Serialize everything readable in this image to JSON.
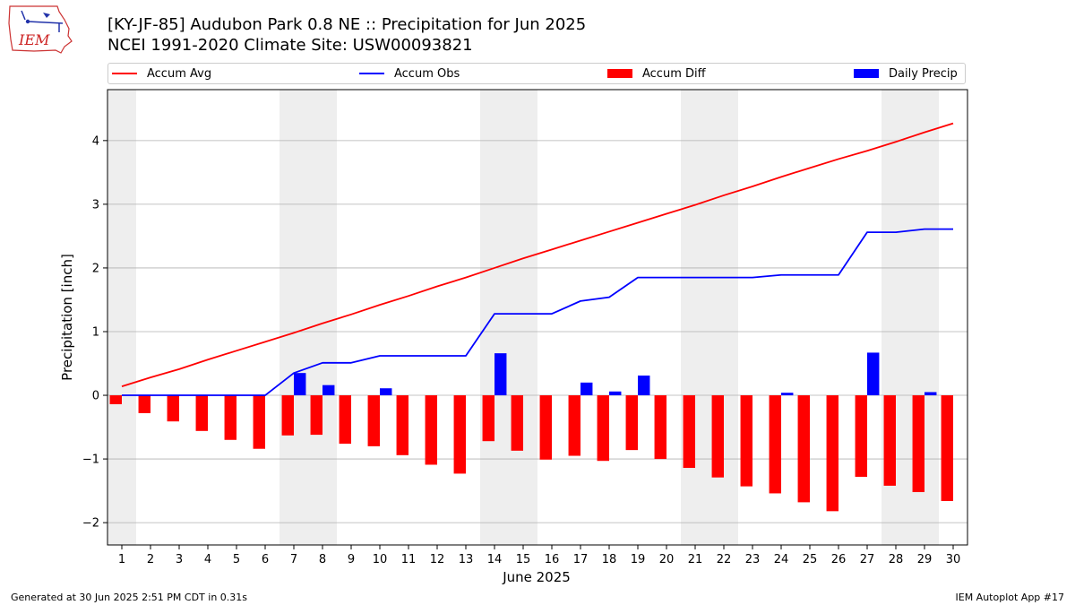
{
  "header": {
    "title_line1": "[KY-JF-85] Audubon Park 0.8 NE :: Precipitation for Jun 2025",
    "title_line2": "NCEI 1991-2020 Climate Site: USW00093821",
    "logo_text": "IEM"
  },
  "footer": {
    "generated": "Generated at 30 Jun 2025 2:51 PM CDT in 0.31s",
    "app": "IEM Autoplot App #17"
  },
  "colors": {
    "accum_avg": "#ff0000",
    "accum_obs": "#0000ff",
    "accum_diff": "#ff0000",
    "daily_precip": "#0000ff",
    "weekend_band": "#eeeeee",
    "grid": "#b0b0b0"
  },
  "chart_data": {
    "type": "bar",
    "xlabel": "June 2025",
    "ylabel": "Precipitation [inch]",
    "ylim": [
      -2.35,
      4.8
    ],
    "yticks": [
      -2,
      -1,
      0,
      1,
      2,
      3,
      4
    ],
    "ytick_labels": [
      "−2",
      "−1",
      "0",
      "1",
      "2",
      "3",
      "4"
    ],
    "grid": "horizontal",
    "legend_position": "top",
    "days": [
      1,
      2,
      3,
      4,
      5,
      6,
      7,
      8,
      9,
      10,
      11,
      12,
      13,
      14,
      15,
      16,
      17,
      18,
      19,
      20,
      21,
      22,
      23,
      24,
      25,
      26,
      27,
      28,
      29,
      30
    ],
    "weekend_days": [
      1,
      7,
      8,
      14,
      15,
      21,
      22,
      28,
      29
    ],
    "series": [
      {
        "name": "Accum Avg",
        "kind": "line",
        "values": [
          0.14,
          0.28,
          0.41,
          0.56,
          0.7,
          0.84,
          0.98,
          1.13,
          1.27,
          1.42,
          1.56,
          1.71,
          1.85,
          2.0,
          2.15,
          2.29,
          2.43,
          2.57,
          2.71,
          2.85,
          2.99,
          3.14,
          3.28,
          3.43,
          3.57,
          3.71,
          3.84,
          3.98,
          4.13,
          4.27
        ]
      },
      {
        "name": "Accum Obs",
        "kind": "line",
        "values": [
          0,
          0,
          0,
          0,
          0,
          0,
          0.35,
          0.51,
          0.51,
          0.62,
          0.62,
          0.62,
          0.62,
          1.28,
          1.28,
          1.28,
          1.48,
          1.54,
          1.85,
          1.85,
          1.85,
          1.85,
          1.85,
          1.89,
          1.89,
          1.89,
          2.56,
          2.56,
          2.61,
          2.61
        ]
      },
      {
        "name": "Accum Diff",
        "kind": "bar",
        "values": [
          -0.14,
          -0.28,
          -0.41,
          -0.56,
          -0.7,
          -0.84,
          -0.63,
          -0.62,
          -0.76,
          -0.8,
          -0.94,
          -1.09,
          -1.23,
          -0.72,
          -0.87,
          -1.01,
          -0.95,
          -1.03,
          -0.86,
          -1.0,
          -1.14,
          -1.29,
          -1.43,
          -1.54,
          -1.68,
          -1.82,
          -1.28,
          -1.42,
          -1.52,
          -1.66
        ]
      },
      {
        "name": "Daily Precip",
        "kind": "bar",
        "values": [
          0,
          0,
          0,
          0,
          0,
          0,
          0.35,
          0.16,
          0,
          0.11,
          0,
          0,
          0,
          0.66,
          0,
          0,
          0.2,
          0.06,
          0.31,
          0,
          0,
          0,
          0,
          0.04,
          0,
          0,
          0.67,
          0,
          0.05,
          0
        ]
      }
    ]
  }
}
